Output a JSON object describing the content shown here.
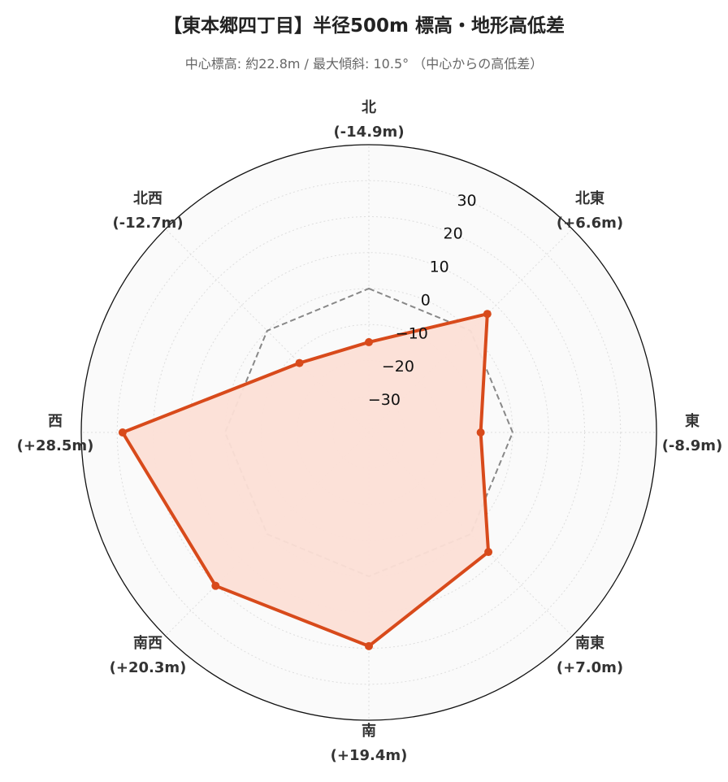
{
  "header": {
    "title": "【東本郷四丁目】半径500m 標高・地形高低差",
    "subtitle": "中心標高: 約22.8m / 最大傾斜: 10.5° （中心からの高低差）"
  },
  "chart_data": {
    "type": "radar",
    "title": "【東本郷四丁目】半径500m 標高・地形高低差",
    "subtitle": "中心標高: 約22.8m / 最大傾斜: 10.5° （中心からの高低差）",
    "categories": [
      "北",
      "北東",
      "東",
      "南東",
      "南",
      "南西",
      "西",
      "北西"
    ],
    "category_labels": [
      "(-14.9m)",
      "(+6.6m)",
      "(-8.9m)",
      "(+7.0m)",
      "(+19.4m)",
      "(+20.3m)",
      "(+28.5m)",
      "(-12.7m)"
    ],
    "values": [
      -14.9,
      6.6,
      -8.9,
      7.0,
      19.4,
      20.3,
      28.5,
      -12.7
    ],
    "reference_value": 0,
    "rlim": [
      -40,
      40
    ],
    "rticks": [
      -30,
      -20,
      -10,
      0,
      10,
      20,
      30
    ],
    "rtick_labels": [
      "−30",
      "−20",
      "−10",
      "0",
      "10",
      "20",
      "30"
    ],
    "grid": true,
    "colors": {
      "series_line": "#d84a1b",
      "series_fill": "#fcdfd6",
      "reference_line": "#888888",
      "background": "#fafafa",
      "grid": "#dddddd"
    }
  }
}
